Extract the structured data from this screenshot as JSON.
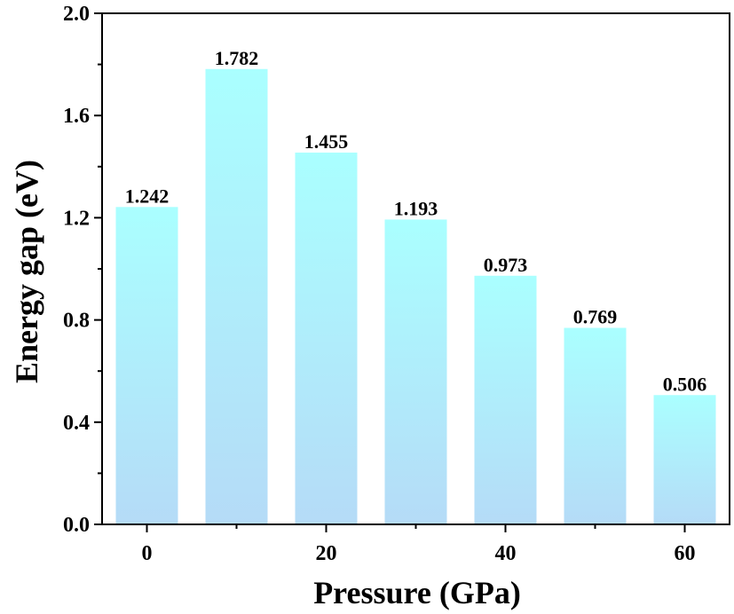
{
  "chart_data": {
    "type": "bar",
    "title": "",
    "xlabel": "Pressure (GPa)",
    "ylabel": "Energy gap (eV)",
    "categories": [
      0,
      10,
      20,
      30,
      40,
      50,
      60
    ],
    "values": [
      1.242,
      1.782,
      1.455,
      1.193,
      0.973,
      0.769,
      0.506
    ],
    "data_labels": [
      "1.242",
      "1.782",
      "1.455",
      "1.193",
      "0.973",
      "0.769",
      "0.506"
    ],
    "xlim": [
      -5,
      65
    ],
    "ylim": [
      0,
      2.0
    ],
    "xticks": [
      0,
      20,
      40,
      60
    ],
    "xtick_labels": [
      "0",
      "20",
      "40",
      "60"
    ],
    "yticks": [
      0.0,
      0.4,
      0.8,
      1.2,
      1.6,
      2.0
    ],
    "ytick_labels": [
      "0.0",
      "0.4",
      "0.8",
      "1.2",
      "1.6",
      "2.0"
    ],
    "grid": false,
    "bar_color_top": "#aaffff",
    "bar_color_bottom": "#b5dbf7"
  }
}
